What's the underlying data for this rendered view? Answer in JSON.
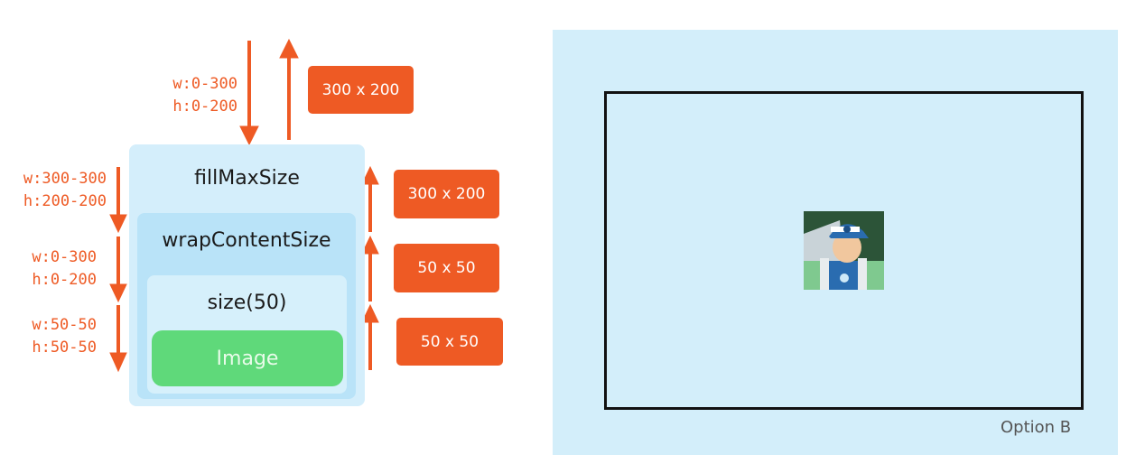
{
  "diagram": {
    "modifiers": {
      "fill_max_size": "fillMaxSize",
      "wrap_content_size": "wrapContentSize",
      "size": "size(50)",
      "image": "Image"
    },
    "incoming_constraints": [
      {
        "w": "w:0-300",
        "h": "h:0-200"
      },
      {
        "w": "w:300-300",
        "h": "h:200-200"
      },
      {
        "w": "w:0-300",
        "h": "h:0-200"
      },
      {
        "w": "w:50-50",
        "h": "h:50-50"
      }
    ],
    "reported_sizes": [
      "300 x 200",
      "300 x 200",
      "50 x 50",
      "50 x 50"
    ],
    "colors": {
      "accent": "#ee5a24",
      "outer": "#d4eefb",
      "middle": "#b9e3f8",
      "inner": "#d6f0fb",
      "image": "#5fd97a"
    }
  },
  "preview": {
    "caption": "Option B",
    "image_icon": "cartoon-character-avatar"
  }
}
